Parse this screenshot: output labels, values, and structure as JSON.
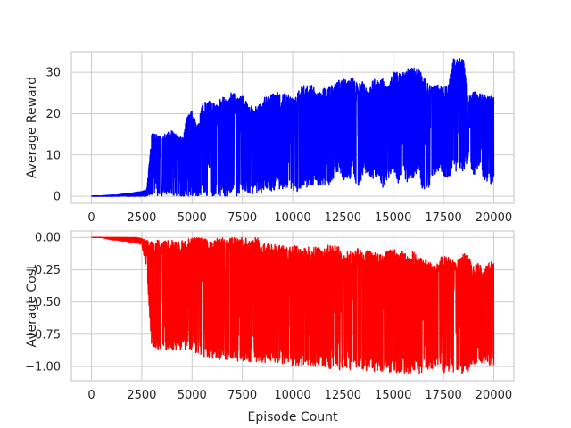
{
  "chart_data": [
    {
      "type": "line",
      "ylabel": "Average Reward",
      "xlabel": "",
      "xlim": [
        -1000,
        21000
      ],
      "ylim": [
        -1.7,
        35.0
      ],
      "xticks": [
        0,
        2500,
        5000,
        7500,
        10000,
        12500,
        15000,
        17500,
        20000
      ],
      "xtick_labels": [
        "0",
        "2500",
        "5000",
        "7500",
        "10000",
        "12500",
        "15000",
        "17500",
        "20000"
      ],
      "yticks": [
        0,
        10,
        20,
        30
      ],
      "ytick_labels": [
        "0",
        "10",
        "20",
        "30"
      ],
      "grid": true,
      "series": [
        {
          "color": "#0000ff",
          "x": [
            0,
            250,
            500,
            750,
            1000,
            1250,
            1500,
            1750,
            2000,
            2250,
            2500,
            2750,
            3000,
            3250,
            3500,
            3750,
            4000,
            4250,
            4500,
            4750,
            5000,
            5250,
            5500,
            5750,
            6000,
            6250,
            6500,
            6750,
            7000,
            7250,
            7500,
            7750,
            8000,
            8250,
            8500,
            8750,
            9000,
            9250,
            9500,
            9750,
            10000,
            10250,
            10500,
            10750,
            11000,
            11250,
            11500,
            11750,
            12000,
            12250,
            12500,
            12750,
            13000,
            13250,
            13500,
            13750,
            14000,
            14250,
            14500,
            14750,
            15000,
            15250,
            15500,
            15750,
            16000,
            16250,
            16500,
            16750,
            17000,
            17250,
            17500,
            17750,
            18000,
            18250,
            18500,
            18750,
            19000,
            19250,
            19500,
            19750,
            20000
          ],
          "upper": [
            0.1,
            0.1,
            0.1,
            0.2,
            0.3,
            0.3,
            0.5,
            0.6,
            0.8,
            1.0,
            1.2,
            1.5,
            15.2,
            15.0,
            14.5,
            15.5,
            16.0,
            15.0,
            14.2,
            19.0,
            21.0,
            17.0,
            22.5,
            23.0,
            23.0,
            22.0,
            24.5,
            23.0,
            26.0,
            24.0,
            25.0,
            22.5,
            22.0,
            21.5,
            24.0,
            24.0,
            25.0,
            25.5,
            25.0,
            25.0,
            24.0,
            26.0,
            27.5,
            27.0,
            27.0,
            25.0,
            26.5,
            26.0,
            27.5,
            28.0,
            28.5,
            28.0,
            29.0,
            27.0,
            28.0,
            25.0,
            29.0,
            28.0,
            29.0,
            26.5,
            30.0,
            30.5,
            30.0,
            31.0,
            31.5,
            31.0,
            29.0,
            27.0,
            27.0,
            27.0,
            26.5,
            27.0,
            33.5,
            33.5,
            33.0,
            24.0,
            25.5,
            25.0,
            24.5,
            24.5,
            24.5
          ],
          "lower": [
            0.0,
            0.0,
            0.0,
            0.0,
            0.0,
            0.0,
            0.0,
            0.0,
            0.0,
            0.0,
            0.0,
            0.0,
            0.5,
            0.2,
            0.0,
            0.5,
            0.2,
            0.0,
            0.0,
            0.0,
            0.0,
            0.0,
            0.5,
            0.0,
            0.0,
            0.5,
            0.0,
            0.0,
            0.5,
            0.0,
            0.5,
            1.0,
            0.5,
            1.0,
            0.5,
            2.0,
            1.0,
            2.0,
            1.5,
            2.0,
            1.5,
            1.0,
            2.5,
            2.0,
            3.0,
            2.5,
            3.0,
            2.0,
            4.0,
            6.0,
            4.0,
            3.0,
            6.0,
            1.0,
            5.0,
            6.0,
            3.0,
            5.0,
            2.0,
            4.0,
            6.0,
            3.0,
            5.0,
            3.0,
            4.0,
            6.0,
            0.5,
            2.0,
            5.0,
            6.0,
            5.0,
            4.0,
            7.0,
            5.0,
            6.0,
            9.0,
            5.0,
            7.0,
            4.0,
            3.0,
            3.0
          ]
        }
      ]
    },
    {
      "type": "line",
      "ylabel": "Average Cost",
      "xlabel": "Episode Count",
      "xlim": [
        -1000,
        21000
      ],
      "ylim": [
        -1.11,
        0.05
      ],
      "xticks": [
        0,
        2500,
        5000,
        7500,
        10000,
        12500,
        15000,
        17500,
        20000
      ],
      "xtick_labels": [
        "0",
        "2500",
        "5000",
        "7500",
        "10000",
        "12500",
        "15000",
        "17500",
        "20000"
      ],
      "yticks": [
        0.0,
        -0.25,
        -0.5,
        -0.75,
        -1.0
      ],
      "ytick_labels": [
        "0.00",
        "−0.25",
        "−0.50",
        "−0.75",
        "−1.00"
      ],
      "grid": true,
      "series": [
        {
          "color": "#ff0000",
          "x": [
            0,
            250,
            500,
            750,
            1000,
            1250,
            1500,
            1750,
            2000,
            2250,
            2500,
            2750,
            3000,
            3250,
            3500,
            3750,
            4000,
            4250,
            4500,
            4750,
            5000,
            5250,
            5500,
            5750,
            6000,
            6250,
            6500,
            6750,
            7000,
            7250,
            7500,
            7750,
            8000,
            8250,
            8500,
            8750,
            9000,
            9250,
            9500,
            9750,
            10000,
            10250,
            10500,
            10750,
            11000,
            11250,
            11500,
            11750,
            12000,
            12250,
            12500,
            12750,
            13000,
            13250,
            13500,
            13750,
            14000,
            14250,
            14500,
            14750,
            15000,
            15250,
            15500,
            15750,
            16000,
            16250,
            16500,
            16750,
            17000,
            17250,
            17500,
            17750,
            18000,
            18250,
            18500,
            18750,
            19000,
            19250,
            19500,
            19750,
            20000
          ],
          "upper": [
            0.0,
            0.0,
            0.0,
            0.0,
            0.0,
            0.0,
            0.0,
            0.0,
            0.0,
            0.0,
            -0.01,
            -0.02,
            -0.03,
            -0.02,
            -0.03,
            -0.02,
            -0.02,
            -0.03,
            -0.02,
            0.0,
            0.0,
            0.0,
            0.0,
            0.0,
            -0.02,
            0.0,
            0.0,
            -0.01,
            0.0,
            0.0,
            0.0,
            0.0,
            0.0,
            0.0,
            -0.03,
            -0.04,
            -0.05,
            -0.06,
            -0.05,
            -0.08,
            -0.06,
            -0.07,
            -0.09,
            -0.06,
            -0.08,
            -0.07,
            -0.1,
            -0.06,
            -0.07,
            -0.06,
            -0.15,
            -0.1,
            -0.12,
            -0.07,
            -0.13,
            -0.09,
            -0.12,
            -0.11,
            -0.14,
            -0.09,
            -0.08,
            -0.12,
            -0.1,
            -0.13,
            -0.1,
            -0.15,
            -0.17,
            -0.18,
            -0.22,
            -0.17,
            -0.12,
            -0.14,
            -0.18,
            -0.16,
            -0.12,
            -0.15,
            -0.22,
            -0.2,
            -0.25,
            -0.18,
            -0.2
          ],
          "lower": [
            0.0,
            0.0,
            0.0,
            -0.01,
            -0.02,
            -0.02,
            -0.03,
            -0.03,
            -0.04,
            -0.04,
            -0.06,
            -0.25,
            -0.87,
            -0.87,
            -0.87,
            -0.87,
            -0.88,
            -0.87,
            -0.88,
            -0.87,
            -0.88,
            -0.9,
            -0.92,
            -0.93,
            -0.94,
            -0.94,
            -0.95,
            -0.95,
            -0.96,
            -0.96,
            -0.96,
            -0.97,
            -0.96,
            -0.97,
            -0.97,
            -0.98,
            -0.97,
            -0.98,
            -0.98,
            -0.98,
            -0.99,
            -0.99,
            -1.0,
            -1.0,
            -1.01,
            -1.0,
            -1.01,
            -1.02,
            -1.01,
            -1.03,
            -1.02,
            -1.02,
            -1.04,
            -1.02,
            -1.04,
            -1.03,
            -1.04,
            -1.04,
            -1.04,
            -1.05,
            -1.04,
            -1.05,
            -1.05,
            -1.06,
            -1.05,
            -1.06,
            -1.04,
            -1.03,
            -1.02,
            -1.03,
            -1.05,
            -1.06,
            -1.05,
            -1.06,
            -1.05,
            -1.04,
            -1.0,
            -1.0,
            -1.0,
            -0.99,
            -0.99
          ]
        }
      ]
    }
  ]
}
